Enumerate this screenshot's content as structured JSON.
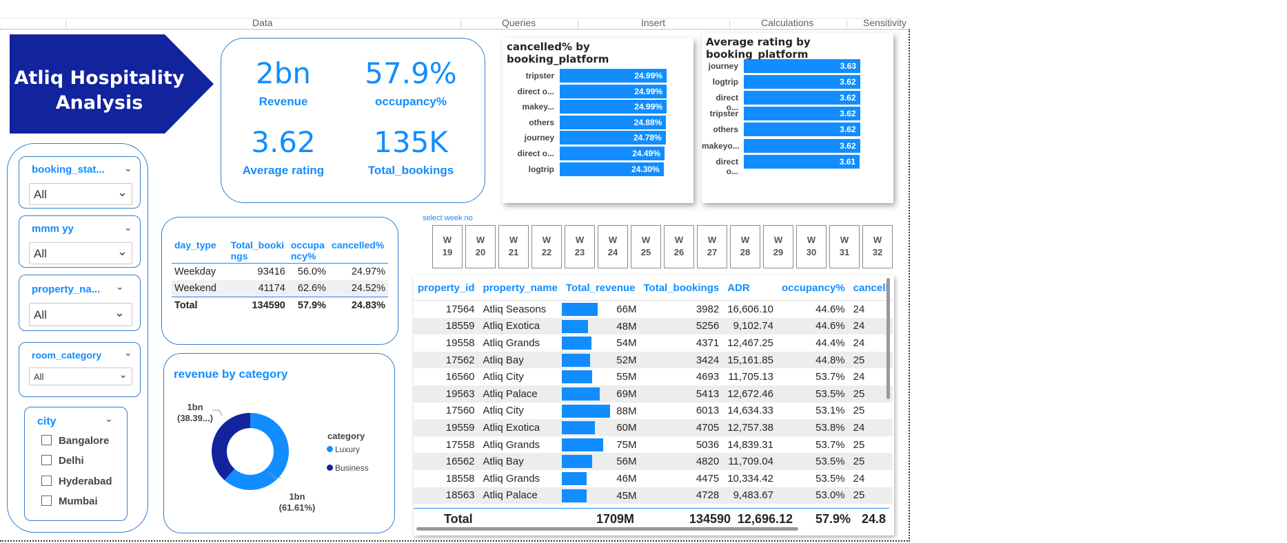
{
  "ribbon": {
    "tabs": [
      "Data",
      "Queries",
      "Insert",
      "Calculations",
      "Sensitivity"
    ]
  },
  "title": {
    "line1": "Atliq Hospitality",
    "line2": "Analysis"
  },
  "kpis": [
    {
      "value": "2bn",
      "label": "Revenue"
    },
    {
      "value": "57.9%",
      "label": "occupancy%"
    },
    {
      "value": "3.62",
      "label": "Average rating"
    },
    {
      "value": "135K",
      "label": "Total_bookings"
    }
  ],
  "filters": {
    "booking_status": {
      "title": "booking_stat...",
      "value": "All"
    },
    "mmm_yy": {
      "title": "mmm yy",
      "value": "All"
    },
    "property_name": {
      "title": "property_na...",
      "value": "All"
    },
    "room_category": {
      "title": "room_category",
      "value": "All"
    },
    "city": {
      "title": "city",
      "options": [
        "Bangalore",
        "Delhi",
        "Hyderabad",
        "Mumbai"
      ]
    }
  },
  "day_type_table": {
    "headers": [
      "day_type",
      "Total_bookings",
      "occupancy%",
      "cancelled%"
    ],
    "header_display": [
      "day_type",
      "Total_booki ngs",
      "occupa ncy%",
      "cancelled%"
    ],
    "rows": [
      [
        "Weekday",
        "93416",
        "56.0%",
        "24.97%"
      ],
      [
        "Weekend",
        "41174",
        "62.6%",
        "24.52%"
      ]
    ],
    "total": [
      "Total",
      "134590",
      "57.9%",
      "24.83%"
    ]
  },
  "donut": {
    "title": "revenue by category",
    "legend_title": "category",
    "labels": [
      {
        "value": "1bn",
        "pct": "(38.39...)"
      },
      {
        "value": "1bn",
        "pct": "(61.61%)"
      }
    ],
    "colors": {
      "Luxury": "#118dff",
      "Business": "#12239e"
    }
  },
  "cancel_chart": {
    "title": "cancelled% by booking_platform"
  },
  "rating_chart": {
    "title": "Average rating by booking_platform"
  },
  "chart_data": [
    {
      "type": "bar",
      "orientation": "horizontal",
      "title": "cancelled% by booking_platform",
      "categories": [
        "tripster",
        "direct o...",
        "makey...",
        "others",
        "journey",
        "direct o...",
        "logtrip"
      ],
      "values": [
        24.99,
        24.99,
        24.99,
        24.88,
        24.78,
        24.49,
        24.3
      ],
      "value_labels": [
        "24.99%",
        "24.99%",
        "24.99%",
        "24.88%",
        "24.78%",
        "24.49%",
        "24.30%"
      ],
      "color": "#118dff"
    },
    {
      "type": "bar",
      "orientation": "horizontal",
      "title": "Average rating by booking_platform",
      "categories": [
        "journey",
        "logtrip",
        "direct o...",
        "tripster",
        "others",
        "makeyo...",
        "direct o..."
      ],
      "values": [
        3.63,
        3.62,
        3.62,
        3.62,
        3.62,
        3.62,
        3.61
      ],
      "value_labels": [
        "3.63",
        "3.62",
        "3.62",
        "3.62",
        "3.62",
        "3.62",
        "3.61"
      ],
      "color": "#118dff"
    },
    {
      "type": "pie",
      "title": "revenue by category",
      "categories": [
        "Luxury",
        "Business"
      ],
      "values": [
        61.61,
        38.39
      ]
    }
  ],
  "week_selector": {
    "caption": "select week no",
    "weeks": [
      "19",
      "20",
      "21",
      "22",
      "23",
      "24",
      "25",
      "26",
      "27",
      "28",
      "29",
      "30",
      "31",
      "32"
    ],
    "prefix": "W"
  },
  "property_table": {
    "headers": [
      "property_id",
      "property_name",
      "Total_revenue",
      "Total_bookings",
      "ADR",
      "occupancy%",
      "cancell"
    ],
    "rows": [
      {
        "id": "17564",
        "name": "Atliq Seasons",
        "rev": "66M",
        "rev_val": 66,
        "bookings": "3982",
        "adr": "16,606.10",
        "occ": "44.6%",
        "canc": "24"
      },
      {
        "id": "18559",
        "name": "Atliq Exotica",
        "rev": "48M",
        "rev_val": 48,
        "bookings": "5256",
        "adr": "9,102.74",
        "occ": "44.6%",
        "canc": "24"
      },
      {
        "id": "19558",
        "name": "Atliq Grands",
        "rev": "54M",
        "rev_val": 54,
        "bookings": "4371",
        "adr": "12,467.25",
        "occ": "44.4%",
        "canc": "24"
      },
      {
        "id": "17562",
        "name": "Atliq Bay",
        "rev": "52M",
        "rev_val": 52,
        "bookings": "3424",
        "adr": "15,161.85",
        "occ": "44.8%",
        "canc": "25"
      },
      {
        "id": "16560",
        "name": "Atliq City",
        "rev": "55M",
        "rev_val": 55,
        "bookings": "4693",
        "adr": "11,705.13",
        "occ": "53.7%",
        "canc": "24"
      },
      {
        "id": "19563",
        "name": "Atliq Palace",
        "rev": "69M",
        "rev_val": 69,
        "bookings": "5413",
        "adr": "12,672.46",
        "occ": "53.5%",
        "canc": "25"
      },
      {
        "id": "17560",
        "name": "Atliq City",
        "rev": "88M",
        "rev_val": 88,
        "bookings": "6013",
        "adr": "14,634.33",
        "occ": "53.1%",
        "canc": "25"
      },
      {
        "id": "19559",
        "name": "Atliq Exotica",
        "rev": "60M",
        "rev_val": 60,
        "bookings": "4705",
        "adr": "12,757.38",
        "occ": "53.8%",
        "canc": "24"
      },
      {
        "id": "17558",
        "name": "Atliq Grands",
        "rev": "75M",
        "rev_val": 75,
        "bookings": "5036",
        "adr": "14,839.31",
        "occ": "53.7%",
        "canc": "25"
      },
      {
        "id": "16562",
        "name": "Atliq Bay",
        "rev": "56M",
        "rev_val": 56,
        "bookings": "4820",
        "adr": "11,709.04",
        "occ": "53.5%",
        "canc": "25"
      },
      {
        "id": "18558",
        "name": "Atliq Grands",
        "rev": "46M",
        "rev_val": 46,
        "bookings": "4475",
        "adr": "10,334.42",
        "occ": "53.5%",
        "canc": "24"
      },
      {
        "id": "18563",
        "name": "Atliq Palace",
        "rev": "45M",
        "rev_val": 45,
        "bookings": "4728",
        "adr": "9,483.67",
        "occ": "53.0%",
        "canc": "25"
      }
    ],
    "total": {
      "label": "Total",
      "rev": "1709M",
      "bookings": "134590",
      "adr": "12,696.12",
      "occ": "57.9%",
      "canc": "24.8"
    }
  }
}
